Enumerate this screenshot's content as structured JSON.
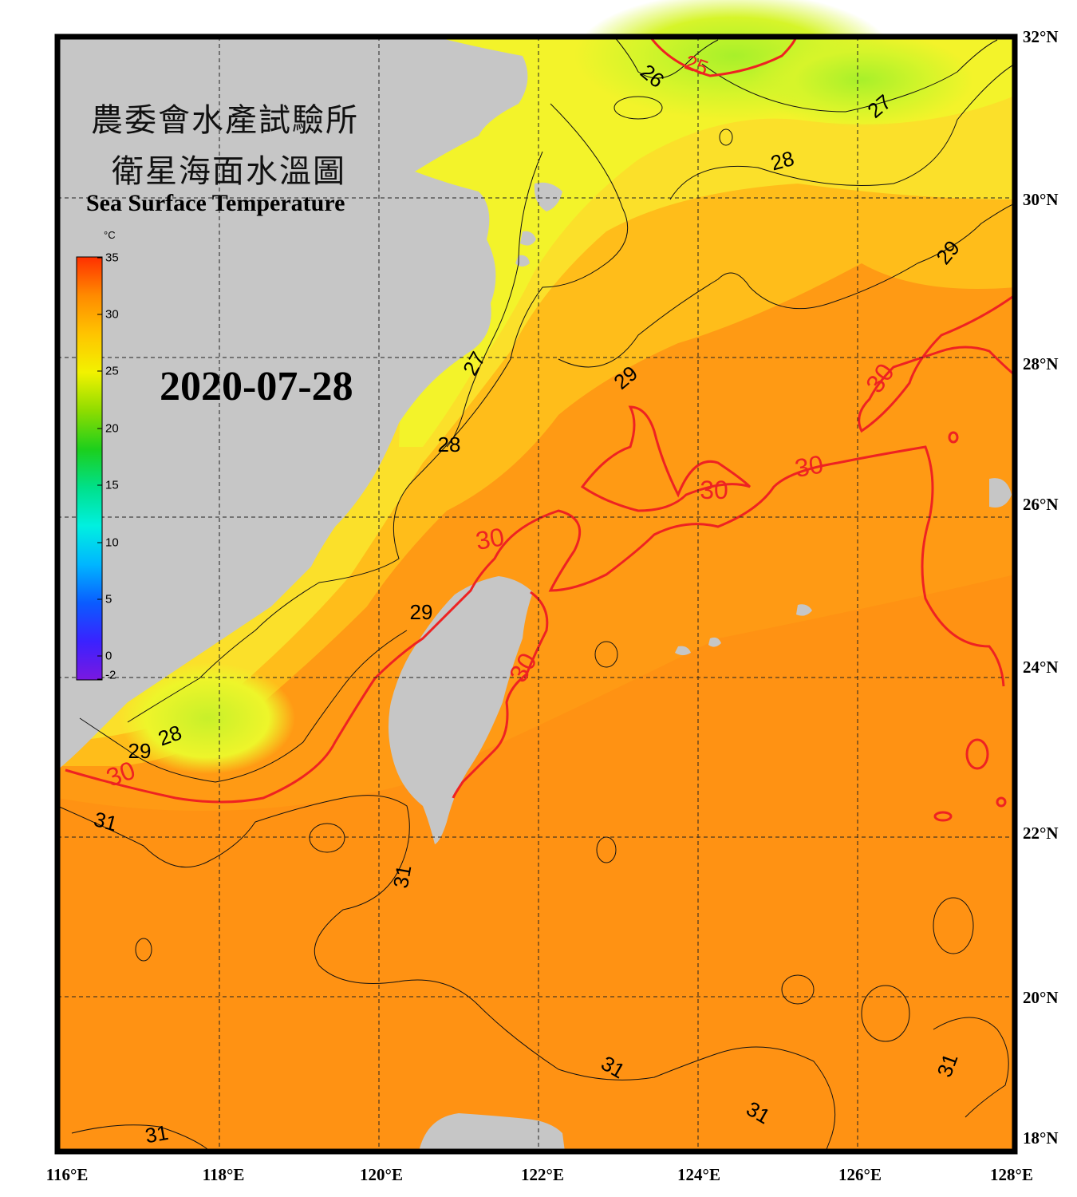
{
  "title": {
    "zh_line1": "農委會水產試驗所",
    "zh_line2": "衛星海面水溫圖",
    "en": "Sea Surface Temperature"
  },
  "date": "2020-07-28",
  "colorbar": {
    "unit": "°C",
    "min": -2,
    "max": 35,
    "ticks": [
      "35",
      "30",
      "25",
      "20",
      "15",
      "10",
      "5",
      "0",
      "-2"
    ],
    "colors": [
      "#7a18e0",
      "#3a22ff",
      "#0a5cff",
      "#00b6ff",
      "#00f0e0",
      "#00e08a",
      "#1ccf1c",
      "#8edc00",
      "#f2f200",
      "#ffc400",
      "#ff8a00",
      "#ff3000"
    ]
  },
  "axes": {
    "lat_labels": [
      "32°N",
      "30°N",
      "28°N",
      "26°N",
      "24°N",
      "22°N",
      "20°N",
      "18°N"
    ],
    "lon_labels": [
      "116°E",
      "118°E",
      "120°E",
      "122°E",
      "124°E",
      "126°E",
      "128°E"
    ],
    "lat_range": [
      18,
      32
    ],
    "lon_range": [
      116,
      128
    ]
  },
  "contours": {
    "black_labels": [
      "25",
      "26",
      "27",
      "27",
      "28",
      "28",
      "28",
      "29",
      "29",
      "29",
      "29",
      "31",
      "31",
      "31",
      "31",
      "31",
      "31"
    ],
    "red_labels": [
      "30",
      "30",
      "30",
      "30",
      "30",
      "30"
    ]
  },
  "colors": {
    "land": "#c6c6c6",
    "ocean_warm": "#ff9a14",
    "ocean_mid": "#ffc018",
    "ocean_cool": "#f6f22a",
    "ocean_cold": "#bff02a",
    "contour_30": "#ee2222",
    "frame": "#000000"
  }
}
